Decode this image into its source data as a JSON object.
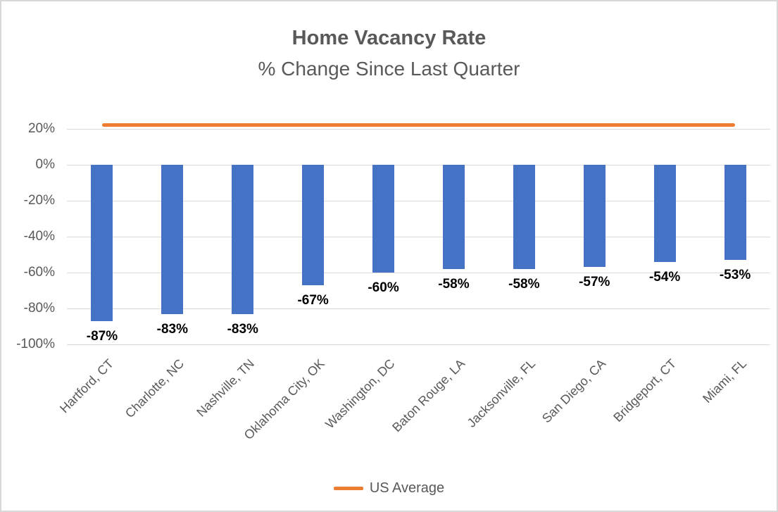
{
  "header": {
    "title": "Home Vacancy Rate",
    "subtitle": "% Change Since Last Quarter"
  },
  "legend": {
    "items": [
      {
        "label": "US Average",
        "color": "#ED7D31",
        "swatch": "line"
      }
    ]
  },
  "chart_data": {
    "type": "bar",
    "title": "Home Vacancy Rate",
    "subtitle": "% Change Since Last Quarter",
    "categories": [
      "Hartford, CT",
      "Charlotte, NC",
      "Nashville, TN",
      "Oklahoma City, OK",
      "Washington, DC",
      "Baton Rouge, LA",
      "Jacksonville, FL",
      "San Diego, CA",
      "Bridgeport, CT",
      "Miami, FL"
    ],
    "series": [
      {
        "name": "% Change Since Last Quarter",
        "type": "bar",
        "color": "#4472C4",
        "values": [
          -87,
          -83,
          -83,
          -67,
          -60,
          -58,
          -58,
          -57,
          -54,
          -53
        ],
        "data_labels": [
          "-87%",
          "-83%",
          "-83%",
          "-67%",
          "-60%",
          "-58%",
          "-58%",
          "-57%",
          "-54%",
          "-53%"
        ]
      },
      {
        "name": "US Average",
        "type": "line",
        "color": "#ED7D31",
        "value": 22
      }
    ],
    "y_axis": {
      "unit": "%",
      "min": -100,
      "max": 20,
      "tick_step": 20,
      "ticks": [
        {
          "label": "20%",
          "value": 20
        },
        {
          "label": "0%",
          "value": 0
        },
        {
          "label": "-20%",
          "value": -20
        },
        {
          "label": "-40%",
          "value": -40
        },
        {
          "label": "-60%",
          "value": -60
        },
        {
          "label": "-80%",
          "value": -80
        },
        {
          "label": "-100%",
          "value": -100
        }
      ]
    },
    "grid": "horizontal",
    "legend_position": "bottom",
    "colors": {
      "bar": "#4472C4",
      "average_line": "#ED7D31",
      "gridline": "#D9D9D9",
      "axis_text": "#595959",
      "data_label_text": "#000000",
      "title_text": "#595959"
    }
  }
}
